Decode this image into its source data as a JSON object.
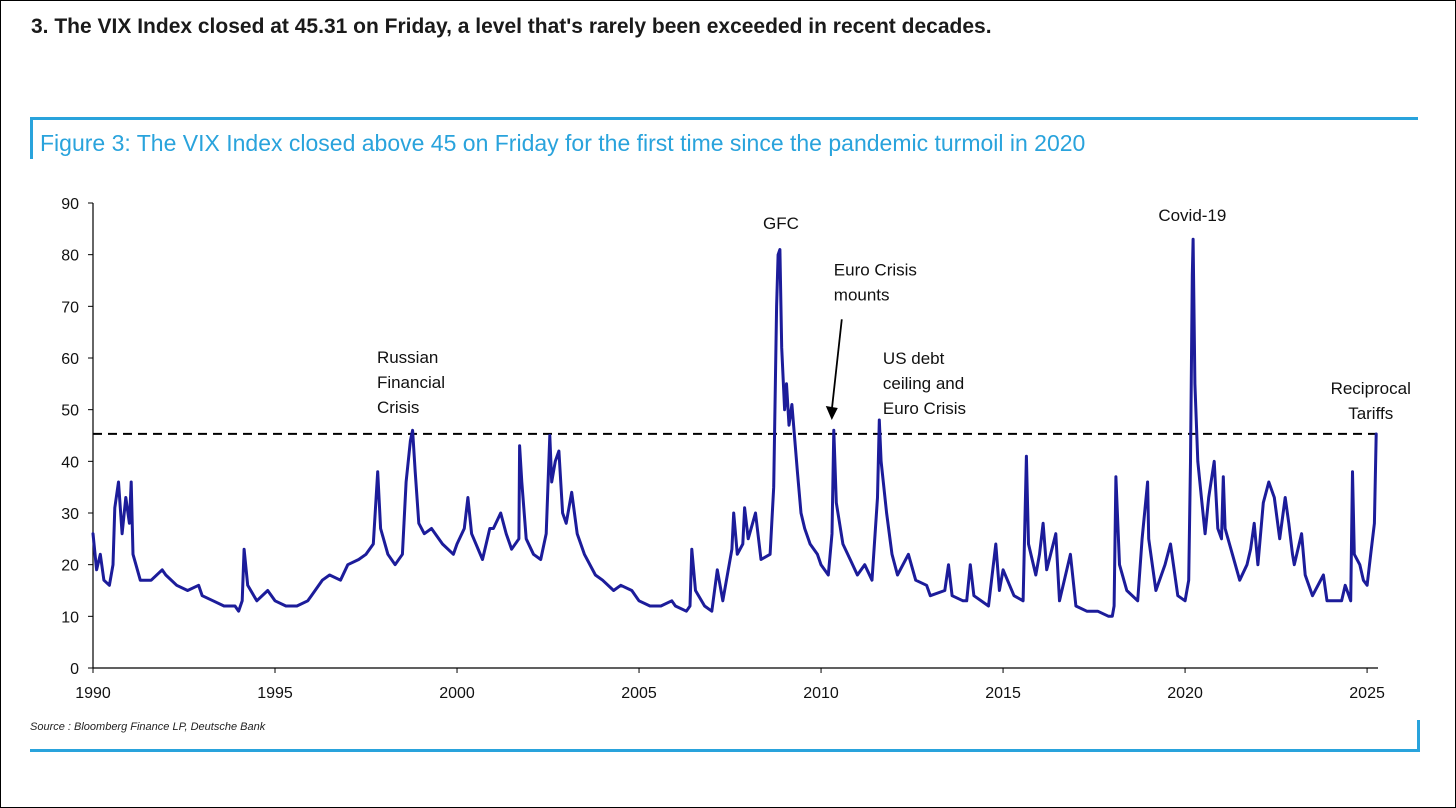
{
  "headline": "3. The VIX Index closed at 45.31 on Friday, a level that's rarely been exceeded in recent decades.",
  "figure_title": "Figure 3: The VIX Index closed above 45 on Friday for the first time since the pandemic turmoil in 2020",
  "source": "Source : Bloomberg Finance LP, Deutsche Bank",
  "colors": {
    "accent": "#29a3dc",
    "series": "#1c1c9a",
    "reference_line": "#000000"
  },
  "chart_data": {
    "type": "line",
    "title": "Figure 3: The VIX Index closed above 45 on Friday for the first time since the pandemic turmoil in 2020",
    "xlabel": "",
    "ylabel": "",
    "xlim": [
      1990,
      2025.3
    ],
    "ylim": [
      0,
      90
    ],
    "x_ticks": [
      1990,
      1995,
      2000,
      2005,
      2010,
      2015,
      2020,
      2025
    ],
    "y_ticks": [
      0,
      10,
      20,
      30,
      40,
      50,
      60,
      70,
      80,
      90
    ],
    "grid": false,
    "legend": "none",
    "reference_line": {
      "y": 45.31,
      "style": "dashed"
    },
    "annotations": [
      {
        "lines": [
          "GFC"
        ],
        "x": 2008.9,
        "y": 85
      },
      {
        "lines": [
          "Euro Crisis",
          "mounts"
        ],
        "x": 2010.35,
        "y": 76,
        "arrow_to": [
          2010.35,
          48
        ]
      },
      {
        "lines": [
          "Russian",
          "Financial",
          "Crisis"
        ],
        "x": 1997.8,
        "y": 59
      },
      {
        "lines": [
          "US debt",
          "ceiling and",
          "Euro Crisis"
        ],
        "x": 2011.7,
        "y": 58.8
      },
      {
        "lines": [
          "Covid-19"
        ],
        "x": 2020.2,
        "y": 86.5
      },
      {
        "lines": [
          "Reciprocal",
          "Tariffs"
        ],
        "x": 2025.1,
        "y": 53
      }
    ],
    "series": [
      {
        "values": [
          [
            1990.0,
            26
          ],
          [
            1990.1,
            19
          ],
          [
            1990.2,
            22
          ],
          [
            1990.3,
            17
          ],
          [
            1990.45,
            16
          ],
          [
            1990.55,
            20
          ],
          [
            1990.6,
            31
          ],
          [
            1990.7,
            36
          ],
          [
            1990.8,
            26
          ],
          [
            1990.9,
            33
          ],
          [
            1991.0,
            28
          ],
          [
            1991.05,
            36
          ],
          [
            1991.1,
            22
          ],
          [
            1991.3,
            17
          ],
          [
            1991.6,
            17
          ],
          [
            1991.9,
            19
          ],
          [
            1992.0,
            18
          ],
          [
            1992.3,
            16
          ],
          [
            1992.6,
            15
          ],
          [
            1992.9,
            16
          ],
          [
            1993.0,
            14
          ],
          [
            1993.3,
            13
          ],
          [
            1993.6,
            12
          ],
          [
            1993.9,
            12
          ],
          [
            1994.0,
            11
          ],
          [
            1994.1,
            13
          ],
          [
            1994.15,
            23
          ],
          [
            1994.25,
            16
          ],
          [
            1994.5,
            13
          ],
          [
            1994.8,
            15
          ],
          [
            1995.0,
            13
          ],
          [
            1995.3,
            12
          ],
          [
            1995.6,
            12
          ],
          [
            1995.9,
            13
          ],
          [
            1996.0,
            14
          ],
          [
            1996.3,
            17
          ],
          [
            1996.5,
            18
          ],
          [
            1996.8,
            17
          ],
          [
            1997.0,
            20
          ],
          [
            1997.3,
            21
          ],
          [
            1997.5,
            22
          ],
          [
            1997.7,
            24
          ],
          [
            1997.82,
            38
          ],
          [
            1997.9,
            27
          ],
          [
            1998.1,
            22
          ],
          [
            1998.3,
            20
          ],
          [
            1998.5,
            22
          ],
          [
            1998.6,
            36
          ],
          [
            1998.72,
            44
          ],
          [
            1998.78,
            46
          ],
          [
            1998.85,
            38
          ],
          [
            1998.95,
            28
          ],
          [
            1999.1,
            26
          ],
          [
            1999.3,
            27
          ],
          [
            1999.6,
            24
          ],
          [
            1999.9,
            22
          ],
          [
            2000.0,
            24
          ],
          [
            2000.2,
            27
          ],
          [
            2000.3,
            33
          ],
          [
            2000.4,
            26
          ],
          [
            2000.7,
            21
          ],
          [
            2000.9,
            27
          ],
          [
            2001.0,
            27
          ],
          [
            2001.2,
            30
          ],
          [
            2001.35,
            26
          ],
          [
            2001.5,
            23
          ],
          [
            2001.7,
            25
          ],
          [
            2001.72,
            43
          ],
          [
            2001.78,
            36
          ],
          [
            2001.9,
            25
          ],
          [
            2002.1,
            22
          ],
          [
            2002.3,
            21
          ],
          [
            2002.45,
            26
          ],
          [
            2002.55,
            45
          ],
          [
            2002.6,
            36
          ],
          [
            2002.7,
            40
          ],
          [
            2002.8,
            42
          ],
          [
            2002.9,
            30
          ],
          [
            2003.0,
            28
          ],
          [
            2003.15,
            34
          ],
          [
            2003.3,
            26
          ],
          [
            2003.5,
            22
          ],
          [
            2003.8,
            18
          ],
          [
            2004.0,
            17
          ],
          [
            2004.3,
            15
          ],
          [
            2004.5,
            16
          ],
          [
            2004.8,
            15
          ],
          [
            2005.0,
            13
          ],
          [
            2005.3,
            12
          ],
          [
            2005.6,
            12
          ],
          [
            2005.9,
            13
          ],
          [
            2006.0,
            12
          ],
          [
            2006.3,
            11
          ],
          [
            2006.4,
            12
          ],
          [
            2006.45,
            23
          ],
          [
            2006.55,
            15
          ],
          [
            2006.8,
            12
          ],
          [
            2007.0,
            11
          ],
          [
            2007.15,
            19
          ],
          [
            2007.3,
            13
          ],
          [
            2007.55,
            23
          ],
          [
            2007.6,
            30
          ],
          [
            2007.7,
            22
          ],
          [
            2007.85,
            24
          ],
          [
            2007.9,
            31
          ],
          [
            2008.0,
            25
          ],
          [
            2008.2,
            30
          ],
          [
            2008.35,
            21
          ],
          [
            2008.6,
            22
          ],
          [
            2008.7,
            35
          ],
          [
            2008.78,
            70
          ],
          [
            2008.82,
            80
          ],
          [
            2008.87,
            81
          ],
          [
            2008.92,
            62
          ],
          [
            2009.0,
            50
          ],
          [
            2009.05,
            55
          ],
          [
            2009.12,
            47
          ],
          [
            2009.2,
            51
          ],
          [
            2009.35,
            38
          ],
          [
            2009.45,
            30
          ],
          [
            2009.55,
            27
          ],
          [
            2009.7,
            24
          ],
          [
            2009.9,
            22
          ],
          [
            2010.0,
            20
          ],
          [
            2010.2,
            18
          ],
          [
            2010.3,
            26
          ],
          [
            2010.35,
            46
          ],
          [
            2010.42,
            32
          ],
          [
            2010.6,
            24
          ],
          [
            2010.8,
            21
          ],
          [
            2011.0,
            18
          ],
          [
            2011.2,
            20
          ],
          [
            2011.4,
            17
          ],
          [
            2011.55,
            33
          ],
          [
            2011.6,
            48
          ],
          [
            2011.65,
            40
          ],
          [
            2011.8,
            30
          ],
          [
            2011.95,
            22
          ],
          [
            2012.1,
            18
          ],
          [
            2012.4,
            22
          ],
          [
            2012.6,
            17
          ],
          [
            2012.9,
            16
          ],
          [
            2013.0,
            14
          ],
          [
            2013.4,
            15
          ],
          [
            2013.5,
            20
          ],
          [
            2013.6,
            14
          ],
          [
            2013.9,
            13
          ],
          [
            2014.0,
            13
          ],
          [
            2014.1,
            20
          ],
          [
            2014.2,
            14
          ],
          [
            2014.6,
            12
          ],
          [
            2014.8,
            24
          ],
          [
            2014.9,
            15
          ],
          [
            2015.0,
            19
          ],
          [
            2015.3,
            14
          ],
          [
            2015.55,
            13
          ],
          [
            2015.64,
            41
          ],
          [
            2015.7,
            24
          ],
          [
            2015.9,
            18
          ],
          [
            2016.0,
            22
          ],
          [
            2016.1,
            28
          ],
          [
            2016.2,
            19
          ],
          [
            2016.45,
            26
          ],
          [
            2016.55,
            13
          ],
          [
            2016.85,
            22
          ],
          [
            2017.0,
            12
          ],
          [
            2017.3,
            11
          ],
          [
            2017.6,
            11
          ],
          [
            2017.9,
            10
          ],
          [
            2018.0,
            10
          ],
          [
            2018.05,
            12
          ],
          [
            2018.1,
            37
          ],
          [
            2018.2,
            20
          ],
          [
            2018.4,
            15
          ],
          [
            2018.7,
            13
          ],
          [
            2018.82,
            25
          ],
          [
            2018.97,
            36
          ],
          [
            2019.0,
            25
          ],
          [
            2019.2,
            15
          ],
          [
            2019.45,
            20
          ],
          [
            2019.6,
            24
          ],
          [
            2019.8,
            14
          ],
          [
            2020.0,
            13
          ],
          [
            2020.1,
            17
          ],
          [
            2020.15,
            40
          ],
          [
            2020.2,
            76
          ],
          [
            2020.22,
            83
          ],
          [
            2020.27,
            55
          ],
          [
            2020.35,
            40
          ],
          [
            2020.45,
            33
          ],
          [
            2020.55,
            26
          ],
          [
            2020.65,
            33
          ],
          [
            2020.8,
            40
          ],
          [
            2020.9,
            27
          ],
          [
            2021.0,
            25
          ],
          [
            2021.05,
            37
          ],
          [
            2021.1,
            27
          ],
          [
            2021.3,
            22
          ],
          [
            2021.5,
            17
          ],
          [
            2021.7,
            20
          ],
          [
            2021.8,
            23
          ],
          [
            2021.9,
            28
          ],
          [
            2022.0,
            20
          ],
          [
            2022.15,
            32
          ],
          [
            2022.3,
            36
          ],
          [
            2022.45,
            33
          ],
          [
            2022.6,
            25
          ],
          [
            2022.75,
            33
          ],
          [
            2022.85,
            28
          ],
          [
            2022.95,
            22
          ],
          [
            2023.0,
            20
          ],
          [
            2023.2,
            26
          ],
          [
            2023.3,
            18
          ],
          [
            2023.5,
            14
          ],
          [
            2023.8,
            18
          ],
          [
            2023.9,
            13
          ],
          [
            2024.0,
            13
          ],
          [
            2024.3,
            13
          ],
          [
            2024.4,
            16
          ],
          [
            2024.55,
            13
          ],
          [
            2024.6,
            38
          ],
          [
            2024.65,
            22
          ],
          [
            2024.8,
            20
          ],
          [
            2024.9,
            17
          ],
          [
            2025.0,
            16
          ],
          [
            2025.1,
            22
          ],
          [
            2025.2,
            28
          ],
          [
            2025.25,
            45.3
          ]
        ]
      }
    ]
  }
}
